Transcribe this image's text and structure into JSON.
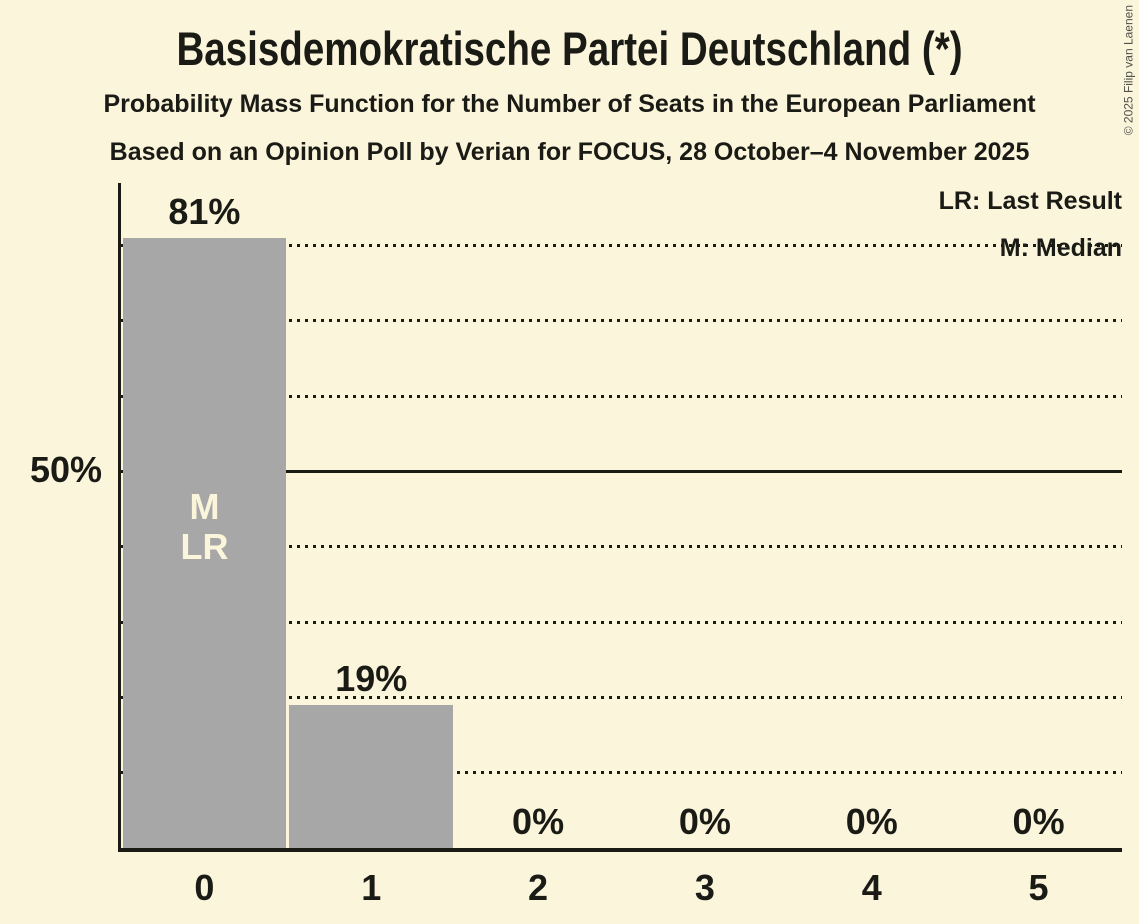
{
  "header": {
    "title": "Basisdemokratische Partei Deutschland (*)",
    "subtitle_pmf": "Probability Mass Function for the Number of Seats in the European Parliament",
    "subtitle_poll": "Based on an Opinion Poll by Verian for FOCUS, 28 October–4 November 2025"
  },
  "legend": {
    "last_result": "LR: Last Result",
    "median": "M: Median",
    "position": "top-right"
  },
  "copyright": "© 2025 Filip van Laenen",
  "colors": {
    "background": "#FBF5DC",
    "bar": "#A7A7A7",
    "text": "#1B1B16",
    "bar_annotation_text": "#FBF5DC",
    "copyright_text": "#50504A"
  },
  "chart_data": {
    "type": "bar",
    "title": "Basisdemokratische Partei Deutschland (*)",
    "categories": [
      "0",
      "1",
      "2",
      "3",
      "4",
      "5"
    ],
    "values": [
      81,
      19,
      0,
      0,
      0,
      0
    ],
    "bar_labels": [
      "81%",
      "19%",
      "0%",
      "0%",
      "0%",
      "0%"
    ],
    "y_axis_label": "50%",
    "ylim": [
      0,
      88.3
    ],
    "gridlines_percent": [
      10,
      20,
      30,
      40,
      50,
      60,
      70,
      80
    ],
    "solid_gridline_percent": 50,
    "grid": "horizontal dotted, solid at 50%",
    "legend_position": "top-right",
    "annotations": {
      "median_label": "M",
      "last_result_label": "LR",
      "annotated_bar_category": "0"
    }
  }
}
